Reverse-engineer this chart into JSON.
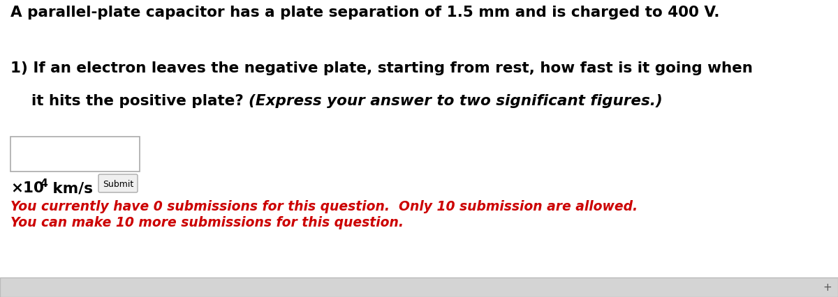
{
  "bg_color": "#ffffff",
  "title_text": "A parallel-plate capacitor has a plate separation of 1.5 mm and is charged to 400 V.",
  "title_fontsize": 15.5,
  "question_line1": "1) If an electron leaves the negative plate, starting from rest, how fast is it going when",
  "question_line2_normal": "    it hits the positive plate? ",
  "question_line2_italic": "(Express your answer to two significant figures.)",
  "question_fontsize": 15.5,
  "submit_text": "Submit",
  "submit_fontsize": 9,
  "red_line1": "You currently have 0 submissions for this question.  Only 10 submission are allowed.",
  "red_line2": "You can make 10 more submissions for this question.",
  "red_fontsize": 13.5,
  "red_color": "#cc0000",
  "scrollbar_color": "#d4d4d4",
  "scrollbar_border": "#bbbbbb",
  "font_family": "DejaVu Sans"
}
